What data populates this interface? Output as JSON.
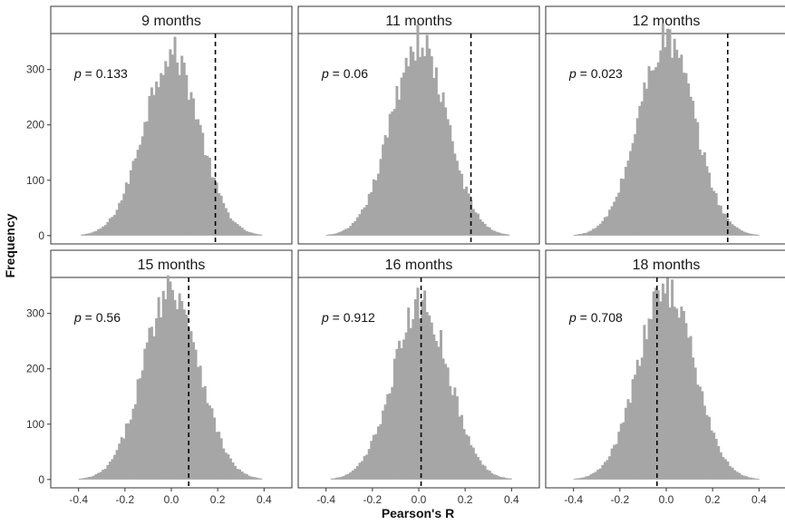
{
  "chart_data": {
    "type": "histogram",
    "xlabel": "Pearson's R",
    "ylabel": "Frequency",
    "xlim": [
      -0.52,
      0.52
    ],
    "ylim": [
      -15,
      365
    ],
    "xticks": [
      -0.4,
      -0.2,
      0.0,
      0.2,
      0.4
    ],
    "yticks": [
      0,
      100,
      200,
      300
    ],
    "bar_color": "#a6a6a6",
    "strip_color": "#ffffff",
    "p_prefix": "p",
    "p_sep": " = ",
    "panels": [
      {
        "label": "9 months",
        "p_value": "0.133",
        "observed_r": 0.19,
        "center": 0.0,
        "peak": 330
      },
      {
        "label": "11 months",
        "p_value": "0.06",
        "observed_r": 0.225,
        "center": 0.0,
        "peak": 350
      },
      {
        "label": "12 months",
        "p_value": "0.023",
        "observed_r": 0.265,
        "center": 0.0,
        "peak": 355
      },
      {
        "label": "15 months",
        "p_value": "0.56",
        "observed_r": 0.075,
        "center": 0.0,
        "peak": 348
      },
      {
        "label": "16 months",
        "p_value": "0.912",
        "observed_r": 0.01,
        "center": 0.01,
        "peak": 318
      },
      {
        "label": "18 months",
        "p_value": "0.708",
        "observed_r": -0.04,
        "center": 0.0,
        "peak": 348
      }
    ]
  }
}
